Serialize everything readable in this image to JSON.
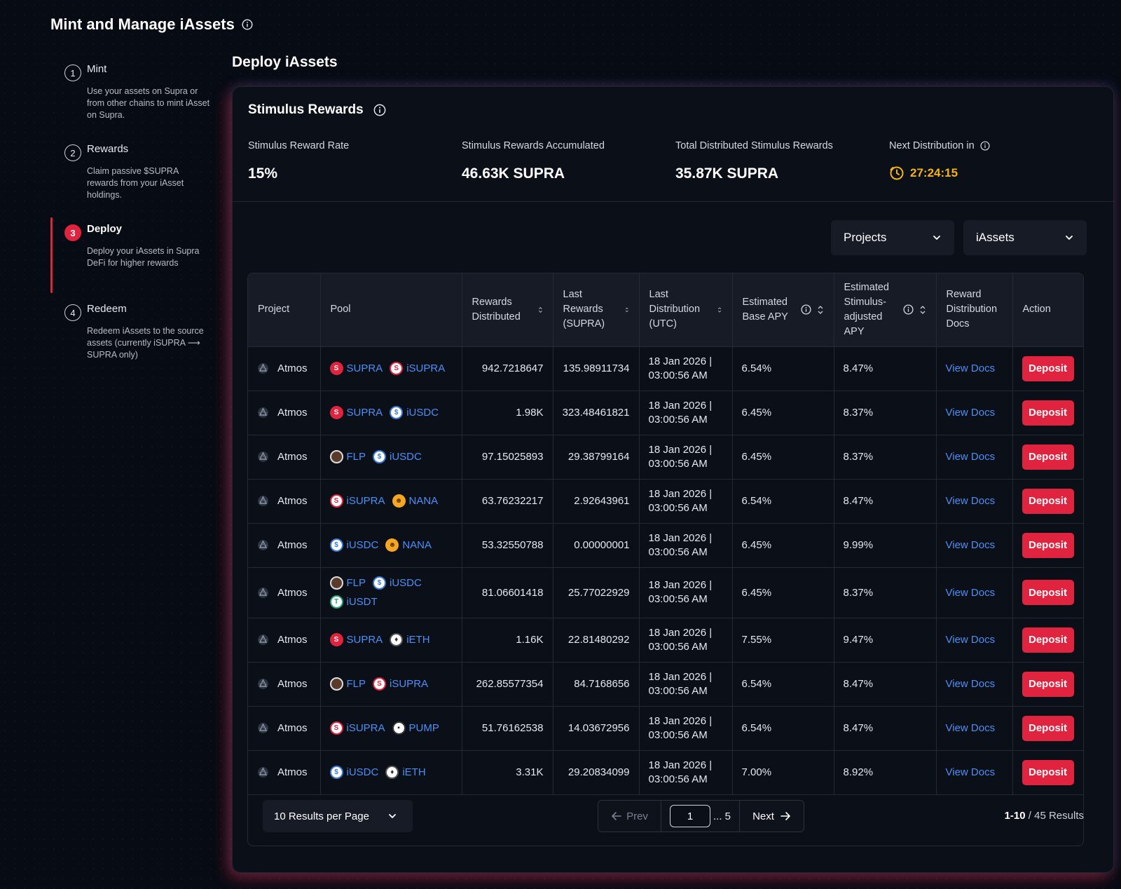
{
  "page": {
    "title": "Mint and Manage iAssets"
  },
  "steps": [
    {
      "num": "1",
      "title": "Mint",
      "desc": "Use your assets on Supra or from other chains to mint iAsset on Supra."
    },
    {
      "num": "2",
      "title": "Rewards",
      "desc": "Claim passive $SUPRA rewards from your iAsset holdings."
    },
    {
      "num": "3",
      "title": "Deploy",
      "desc": "Deploy your iAssets in Supra DeFi for higher rewards",
      "active": true
    },
    {
      "num": "4",
      "title": "Redeem",
      "desc": "Redeem iAssets to the source assets (currently iSUPRA ⟶ SUPRA only)"
    }
  ],
  "section": {
    "title": "Deploy iAssets"
  },
  "card": {
    "title": "Stimulus Rewards",
    "stats": [
      {
        "label": "Stimulus Reward Rate",
        "value": "15%"
      },
      {
        "label": "Stimulus Rewards Accumulated",
        "value": "46.63K SUPRA"
      },
      {
        "label": "Total Distributed Stimulus Rewards",
        "value": "35.87K SUPRA"
      },
      {
        "label": "Next Distribution in",
        "value": "27:24:15"
      }
    ],
    "timer_color": "#f5b318"
  },
  "filters": {
    "projects": "Projects",
    "iassets": "iAssets"
  },
  "table": {
    "headers": {
      "project": "Project",
      "pool": "Pool",
      "rewards_distributed": "Rewards Distributed",
      "last_rewards": "Last Rewards (SUPRA)",
      "last_distribution": "Last Distribution (UTC)",
      "base_apy": "Estimated Base APY",
      "stim_apy": "Estimated Stimulus-adjusted APY",
      "docs": "Reward Distribution Docs",
      "action": "Action"
    },
    "rows": [
      {
        "project": "Atmos",
        "pool": [
          "SUPRA",
          "iSUPRA"
        ],
        "rewards": "942.7218647",
        "last": "135.98911734",
        "date": "18 Jan 2026 |",
        "time": "03:00:56 AM",
        "base": "6.54%",
        "stim": "8.47%",
        "docs": "View Docs",
        "action": "Deposit"
      },
      {
        "project": "Atmos",
        "pool": [
          "SUPRA",
          "iUSDC"
        ],
        "rewards": "1.98K",
        "last": "323.48461821",
        "date": "18 Jan 2026 |",
        "time": "03:00:56 AM",
        "base": "6.45%",
        "stim": "8.37%",
        "docs": "View Docs",
        "action": "Deposit"
      },
      {
        "project": "Atmos",
        "pool": [
          "FLP",
          "iUSDC"
        ],
        "rewards": "97.15025893",
        "last": "29.38799164",
        "date": "18 Jan 2026 |",
        "time": "03:00:56 AM",
        "base": "6.45%",
        "stim": "8.37%",
        "docs": "View Docs",
        "action": "Deposit"
      },
      {
        "project": "Atmos",
        "pool": [
          "iSUPRA",
          "NANA"
        ],
        "rewards": "63.76232217",
        "last": "2.92643961",
        "date": "18 Jan 2026 |",
        "time": "03:00:56 AM",
        "base": "6.54%",
        "stim": "8.47%",
        "docs": "View Docs",
        "action": "Deposit"
      },
      {
        "project": "Atmos",
        "pool": [
          "iUSDC",
          "NANA"
        ],
        "rewards": "53.32550788",
        "last": "0.00000001",
        "date": "18 Jan 2026 |",
        "time": "03:00:56 AM",
        "base": "6.45%",
        "stim": "9.99%",
        "docs": "View Docs",
        "action": "Deposit"
      },
      {
        "project": "Atmos",
        "pool": [
          "FLP",
          "iUSDC",
          "iUSDT"
        ],
        "rewards": "81.06601418",
        "last": "25.77022929",
        "date": "18 Jan 2026 |",
        "time": "03:00:56 AM",
        "base": "6.45%",
        "stim": "8.37%",
        "docs": "View Docs",
        "action": "Deposit"
      },
      {
        "project": "Atmos",
        "pool": [
          "SUPRA",
          "iETH"
        ],
        "rewards": "1.16K",
        "last": "22.81480292",
        "date": "18 Jan 2026 |",
        "time": "03:00:56 AM",
        "base": "7.55%",
        "stim": "9.47%",
        "docs": "View Docs",
        "action": "Deposit"
      },
      {
        "project": "Atmos",
        "pool": [
          "FLP",
          "iSUPRA"
        ],
        "rewards": "262.85577354",
        "last": "84.7168656",
        "date": "18 Jan 2026 |",
        "time": "03:00:56 AM",
        "base": "6.54%",
        "stim": "8.47%",
        "docs": "View Docs",
        "action": "Deposit"
      },
      {
        "project": "Atmos",
        "pool": [
          "iSUPRA",
          "PUMP"
        ],
        "rewards": "51.76162538",
        "last": "14.03672956",
        "date": "18 Jan 2026 |",
        "time": "03:00:56 AM",
        "base": "6.54%",
        "stim": "8.47%",
        "docs": "View Docs",
        "action": "Deposit"
      },
      {
        "project": "Atmos",
        "pool": [
          "iUSDC",
          "iETH"
        ],
        "rewards": "3.31K",
        "last": "29.20834099",
        "date": "18 Jan 2026 |",
        "time": "03:00:56 AM",
        "base": "7.00%",
        "stim": "8.92%",
        "docs": "View Docs",
        "action": "Deposit"
      }
    ]
  },
  "footer": {
    "per_page": "10 Results per Page",
    "prev": "Prev",
    "page": "1",
    "ellipsis": "... 5",
    "next": "Next",
    "range": "1-10",
    "total": "/ 45 Results"
  },
  "colors": {
    "accent": "#e0233e",
    "link": "#4e8ff7",
    "background": "#070b14"
  }
}
